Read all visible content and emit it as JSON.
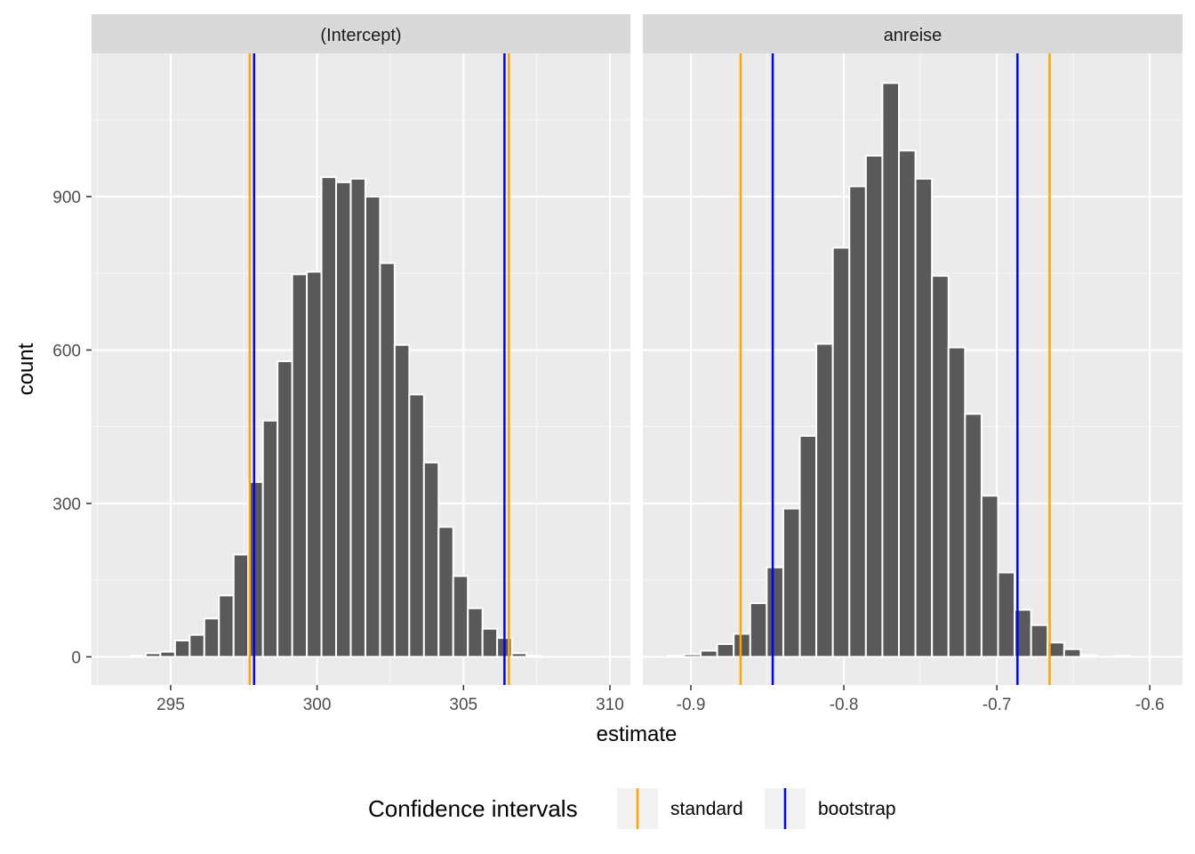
{
  "chart_data": {
    "type": "bar",
    "xlabel": "estimate",
    "ylabel": "count",
    "y_ticks": [
      0,
      300,
      600,
      900
    ],
    "ylim": [
      -55,
      1180
    ],
    "legend": {
      "title": "Confidence intervals",
      "placement": "bottom",
      "items": [
        {
          "label": "standard",
          "color": "#FFA500"
        },
        {
          "label": "bootstrap",
          "color": "#0000FF"
        }
      ]
    },
    "panels": [
      {
        "strip": "(Intercept)",
        "xlim": [
          292.3,
          310.7
        ],
        "x_ticks": [
          295,
          300,
          305,
          310
        ],
        "x_tick_labels": [
          "295",
          "300",
          "305",
          "310"
        ],
        "bins": {
          "start": 293.15,
          "width": 0.5,
          "counts": [
            0,
            2,
            7,
            10,
            32,
            43,
            75,
            120,
            200,
            342,
            462,
            578,
            748,
            753,
            938,
            928,
            935,
            900,
            770,
            610,
            513,
            380,
            254,
            158,
            95,
            55,
            37,
            7,
            2,
            0
          ]
        },
        "ci_lines": [
          {
            "interval": "standard",
            "lower": 297.7,
            "upper": 306.55
          },
          {
            "interval": "bootstrap",
            "lower": 297.85,
            "upper": 306.4
          }
        ]
      },
      {
        "strip": "anreise",
        "xlim": [
          -0.9314,
          -0.5786
        ],
        "x_ticks": [
          -0.9,
          -0.8,
          -0.7,
          -0.6
        ],
        "x_tick_labels": [
          "-0.9",
          "-0.8",
          "-0.7",
          "-0.6"
        ],
        "bins": {
          "start": -0.926,
          "width": 0.0108,
          "counts": [
            0,
            2,
            5,
            12,
            25,
            45,
            105,
            175,
            290,
            432,
            612,
            800,
            920,
            980,
            1122,
            990,
            935,
            745,
            605,
            475,
            315,
            165,
            92,
            62,
            28,
            15,
            3,
            0,
            2,
            0
          ]
        },
        "ci_lines": [
          {
            "interval": "standard",
            "lower": -0.8675,
            "upper": -0.6655
          },
          {
            "interval": "bootstrap",
            "lower": -0.8465,
            "upper": -0.6865
          }
        ]
      }
    ]
  }
}
